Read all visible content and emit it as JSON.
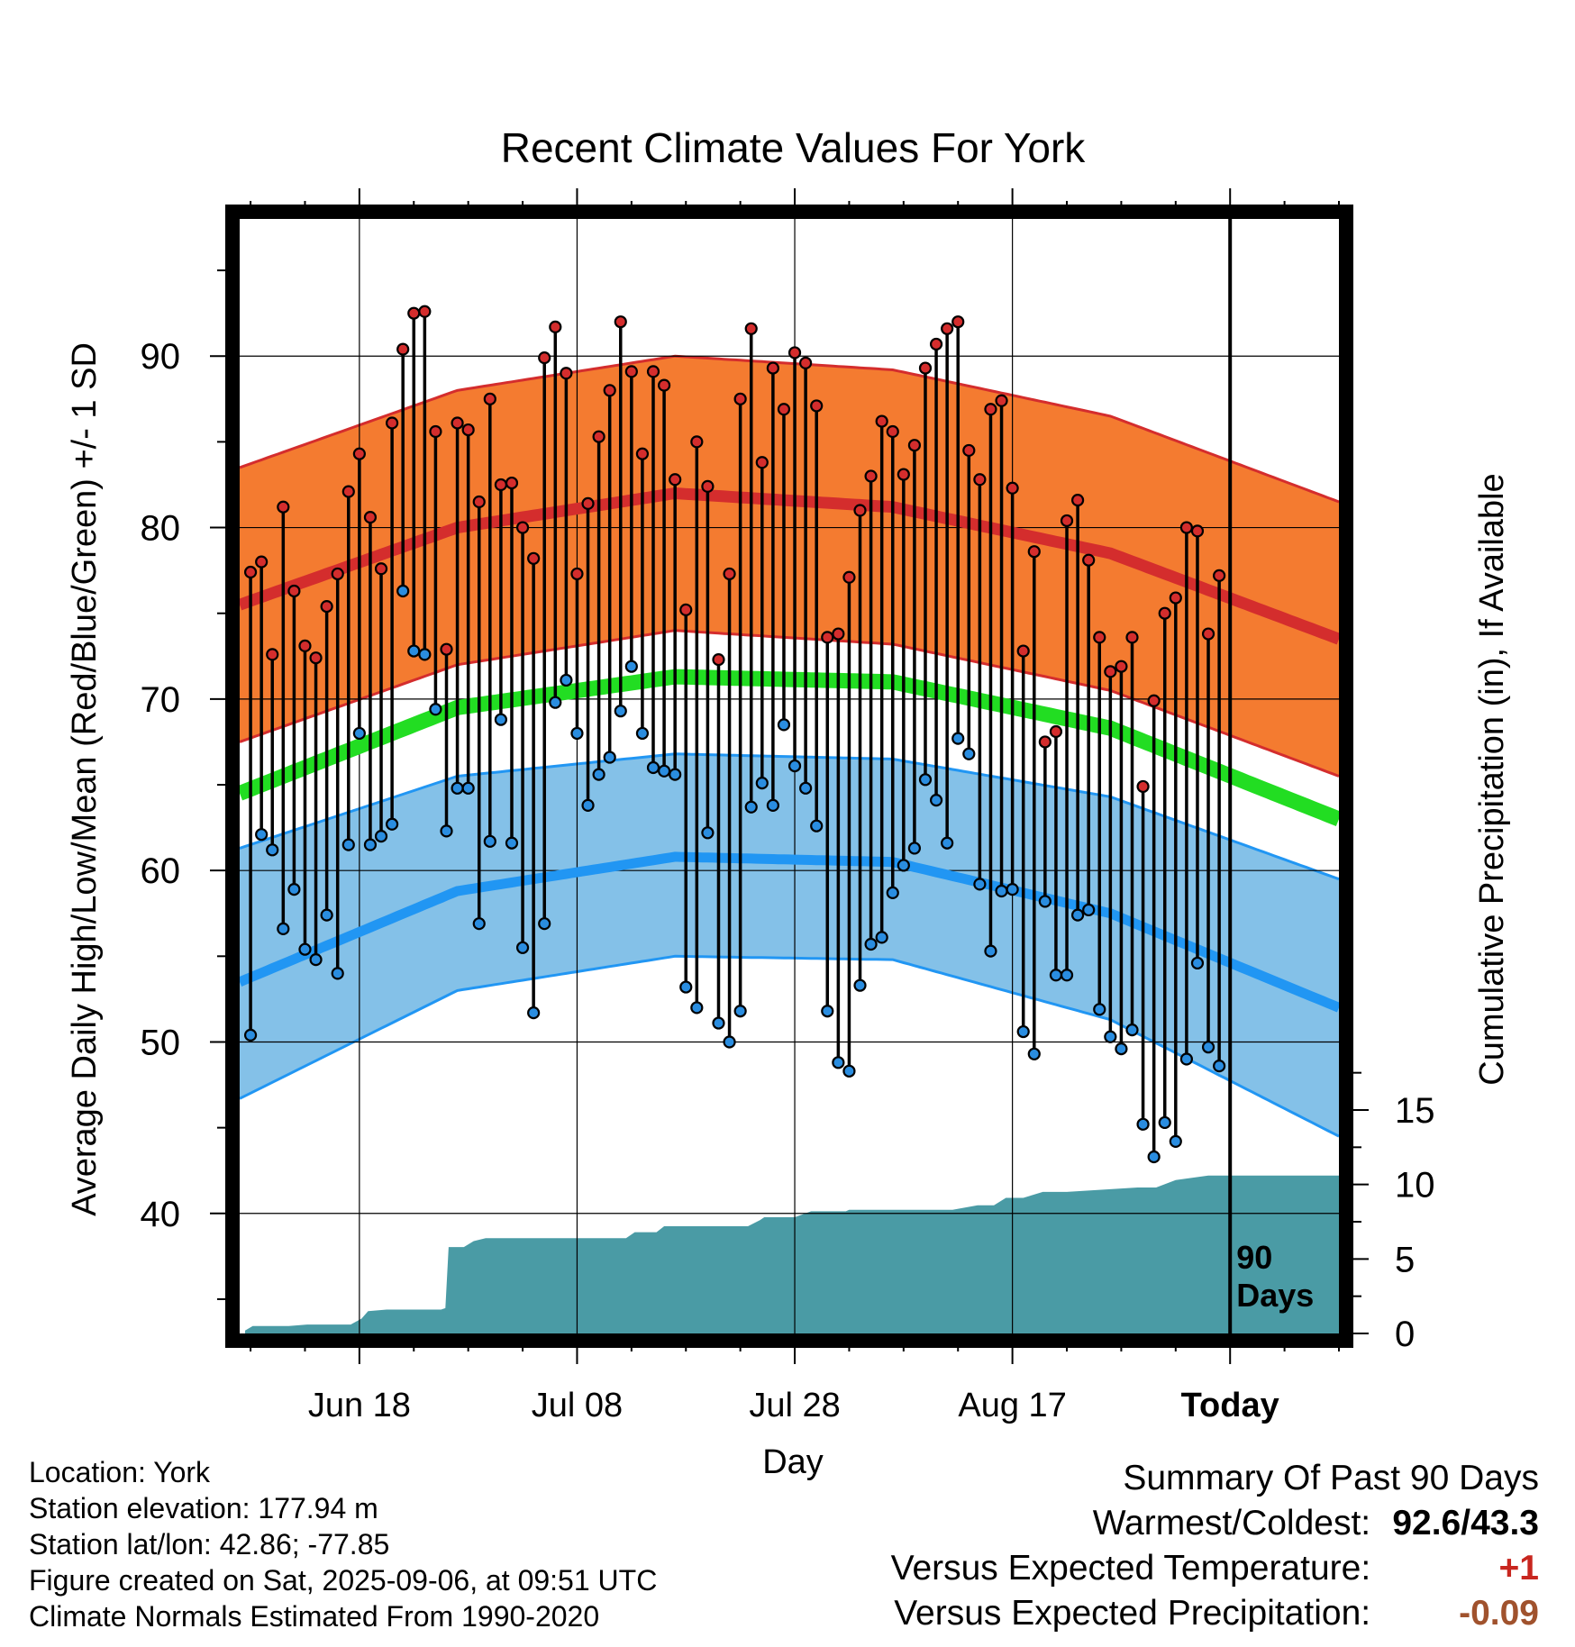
{
  "chart_data": {
    "type": "line",
    "title": "Recent Climate Values For York",
    "xlabel": "Day",
    "ylabel": "Average Daily High/Low/Mean (Red/Blue/Green) +/- 1 SD",
    "y2label": "Cumulative Precipitation (in), If Available",
    "ylim": [
      33,
      98
    ],
    "y2lim": [
      0,
      20
    ],
    "yticks": [
      "40",
      "50",
      "60",
      "70",
      "80",
      "90"
    ],
    "y2ticks": [
      "0",
      "5",
      "10",
      "15"
    ],
    "xticks": [
      "Jun 18",
      "Jul 08",
      "Jul 28",
      "Aug 17",
      "Today"
    ],
    "xtick_days": [
      11,
      31,
      51,
      71,
      91
    ],
    "xlim": [
      0,
      101
    ],
    "marker_label": "90 Days",
    "marker_label_lines": [
      "90",
      "Days"
    ],
    "marker_day": 91,
    "grid": true,
    "colors": {
      "high_band": "#f47b30",
      "high_line": "#d42d2d",
      "mean_line": "#22dd22",
      "low_band": "#84c1e8",
      "low_line": "#2196f3",
      "precip": "#4a9ba5",
      "high_dot": "#d42d2d",
      "low_dot": "#2a8de0"
    },
    "normal_high": {
      "days": [
        0,
        20,
        40,
        60,
        80,
        101
      ],
      "mean": [
        75.5,
        80.0,
        82.0,
        81.2,
        78.5,
        73.5
      ],
      "sd": 8.0
    },
    "normal_low": {
      "days": [
        0,
        20,
        40,
        60,
        80,
        101
      ],
      "mean": [
        53.5,
        58.8,
        60.8,
        60.5,
        57.5,
        52.0
      ],
      "upper": [
        61.3,
        65.5,
        66.8,
        66.5,
        64.3,
        59.5
      ],
      "lower": [
        46.7,
        53.0,
        55.0,
        54.8,
        51.3,
        44.5
      ]
    },
    "normal_mean": {
      "days": [
        0,
        20,
        40,
        60,
        80,
        101
      ],
      "values": [
        64.5,
        69.5,
        71.3,
        71.0,
        68.3,
        63.0
      ]
    },
    "daily_high": [
      77.4,
      78.0,
      72.6,
      81.2,
      76.3,
      73.1,
      72.4,
      75.4,
      77.3,
      82.1,
      84.3,
      80.6,
      77.6,
      86.1,
      90.4,
      92.5,
      92.6,
      85.6,
      72.9,
      86.1,
      85.7,
      81.5,
      87.5,
      82.5,
      82.6,
      80.0,
      78.2,
      89.9,
      91.7,
      89.0,
      77.3,
      81.4,
      85.3,
      88.0,
      92.0,
      89.1,
      84.3,
      89.1,
      88.3,
      82.8,
      75.2,
      85.0,
      82.4,
      72.3,
      77.3,
      87.5,
      91.6,
      83.8,
      89.3,
      86.9,
      90.2,
      89.6,
      87.1,
      73.6,
      73.8,
      77.1,
      81.0,
      83.0,
      86.2,
      85.6,
      83.1,
      84.8,
      89.3,
      90.7,
      91.6,
      92.0,
      84.5,
      82.8,
      86.9,
      87.4,
      82.3,
      72.8,
      78.6,
      67.5,
      68.1,
      80.4,
      81.6,
      78.1,
      73.6,
      71.6,
      71.9,
      73.6,
      64.9,
      69.9,
      75.0,
      75.9,
      80.0,
      79.8,
      73.8,
      77.2
    ],
    "daily_low": [
      50.4,
      62.1,
      61.2,
      56.6,
      58.9,
      55.4,
      54.8,
      57.4,
      54.0,
      61.5,
      68.0,
      61.5,
      62.0,
      62.7,
      76.3,
      72.8,
      72.6,
      69.4,
      62.3,
      64.8,
      64.8,
      56.9,
      61.7,
      68.8,
      61.6,
      55.5,
      51.7,
      56.9,
      69.8,
      71.1,
      68.0,
      63.8,
      65.6,
      66.6,
      69.3,
      71.9,
      68.0,
      66.0,
      65.8,
      65.6,
      53.2,
      52.0,
      62.2,
      51.1,
      50.0,
      51.8,
      63.7,
      65.1,
      63.8,
      68.5,
      66.1,
      64.8,
      62.6,
      51.8,
      48.8,
      48.3,
      53.3,
      55.7,
      56.1,
      58.7,
      60.3,
      61.3,
      65.3,
      64.1,
      61.6,
      67.7,
      66.8,
      59.2,
      55.3,
      58.8,
      58.9,
      50.6,
      49.3,
      58.2,
      53.9,
      53.9,
      57.4,
      57.7,
      51.9,
      50.3,
      49.6,
      50.7,
      45.2,
      43.3,
      45.3,
      44.2,
      49.0,
      54.6,
      49.7,
      48.6
    ],
    "cumulative_precip": {
      "days": [
        0.5,
        1.2,
        4.5,
        6.2,
        10.2,
        11.2,
        11.8,
        13.5,
        18.5,
        18.9,
        19.2,
        20.6,
        21.5,
        22.6,
        24.2,
        25.5,
        29.5,
        35.5,
        36.3,
        38.3,
        39.0,
        46.7,
        47.8,
        48.2,
        51.0,
        52.5,
        55.7,
        56.0,
        65.5,
        67.8,
        69.3,
        70.4,
        72.0,
        73.8,
        76.0,
        82.5,
        84.2,
        86.0,
        89.0,
        101
      ],
      "values": [
        0.2,
        0.5,
        0.5,
        0.6,
        0.6,
        1.0,
        1.5,
        1.6,
        1.6,
        1.7,
        5.8,
        5.8,
        6.2,
        6.4,
        6.4,
        6.4,
        6.4,
        6.4,
        6.8,
        6.8,
        7.2,
        7.2,
        7.6,
        7.8,
        7.8,
        8.2,
        8.2,
        8.3,
        8.3,
        8.6,
        8.6,
        9.1,
        9.1,
        9.5,
        9.5,
        9.8,
        9.8,
        10.3,
        10.6,
        10.6
      ]
    }
  },
  "info": {
    "location": "Location: York",
    "elevation": "Station elevation: 177.94 m",
    "latlon": "Station lat/lon: 42.86; -77.85",
    "created": "Figure created on Sat, 2025-09-06, at 09:51 UTC",
    "normals": "Climate Normals Estimated From 1990-2020"
  },
  "summary": {
    "title": "Summary Of Past 90 Days",
    "warm_label": "Warmest/Coldest:",
    "warm_value": "92.6/43.3",
    "temp_label": "Versus Expected Temperature:",
    "temp_value": "+1",
    "precip_label": "Versus Expected Precipitation:",
    "precip_value": "-0.09"
  }
}
